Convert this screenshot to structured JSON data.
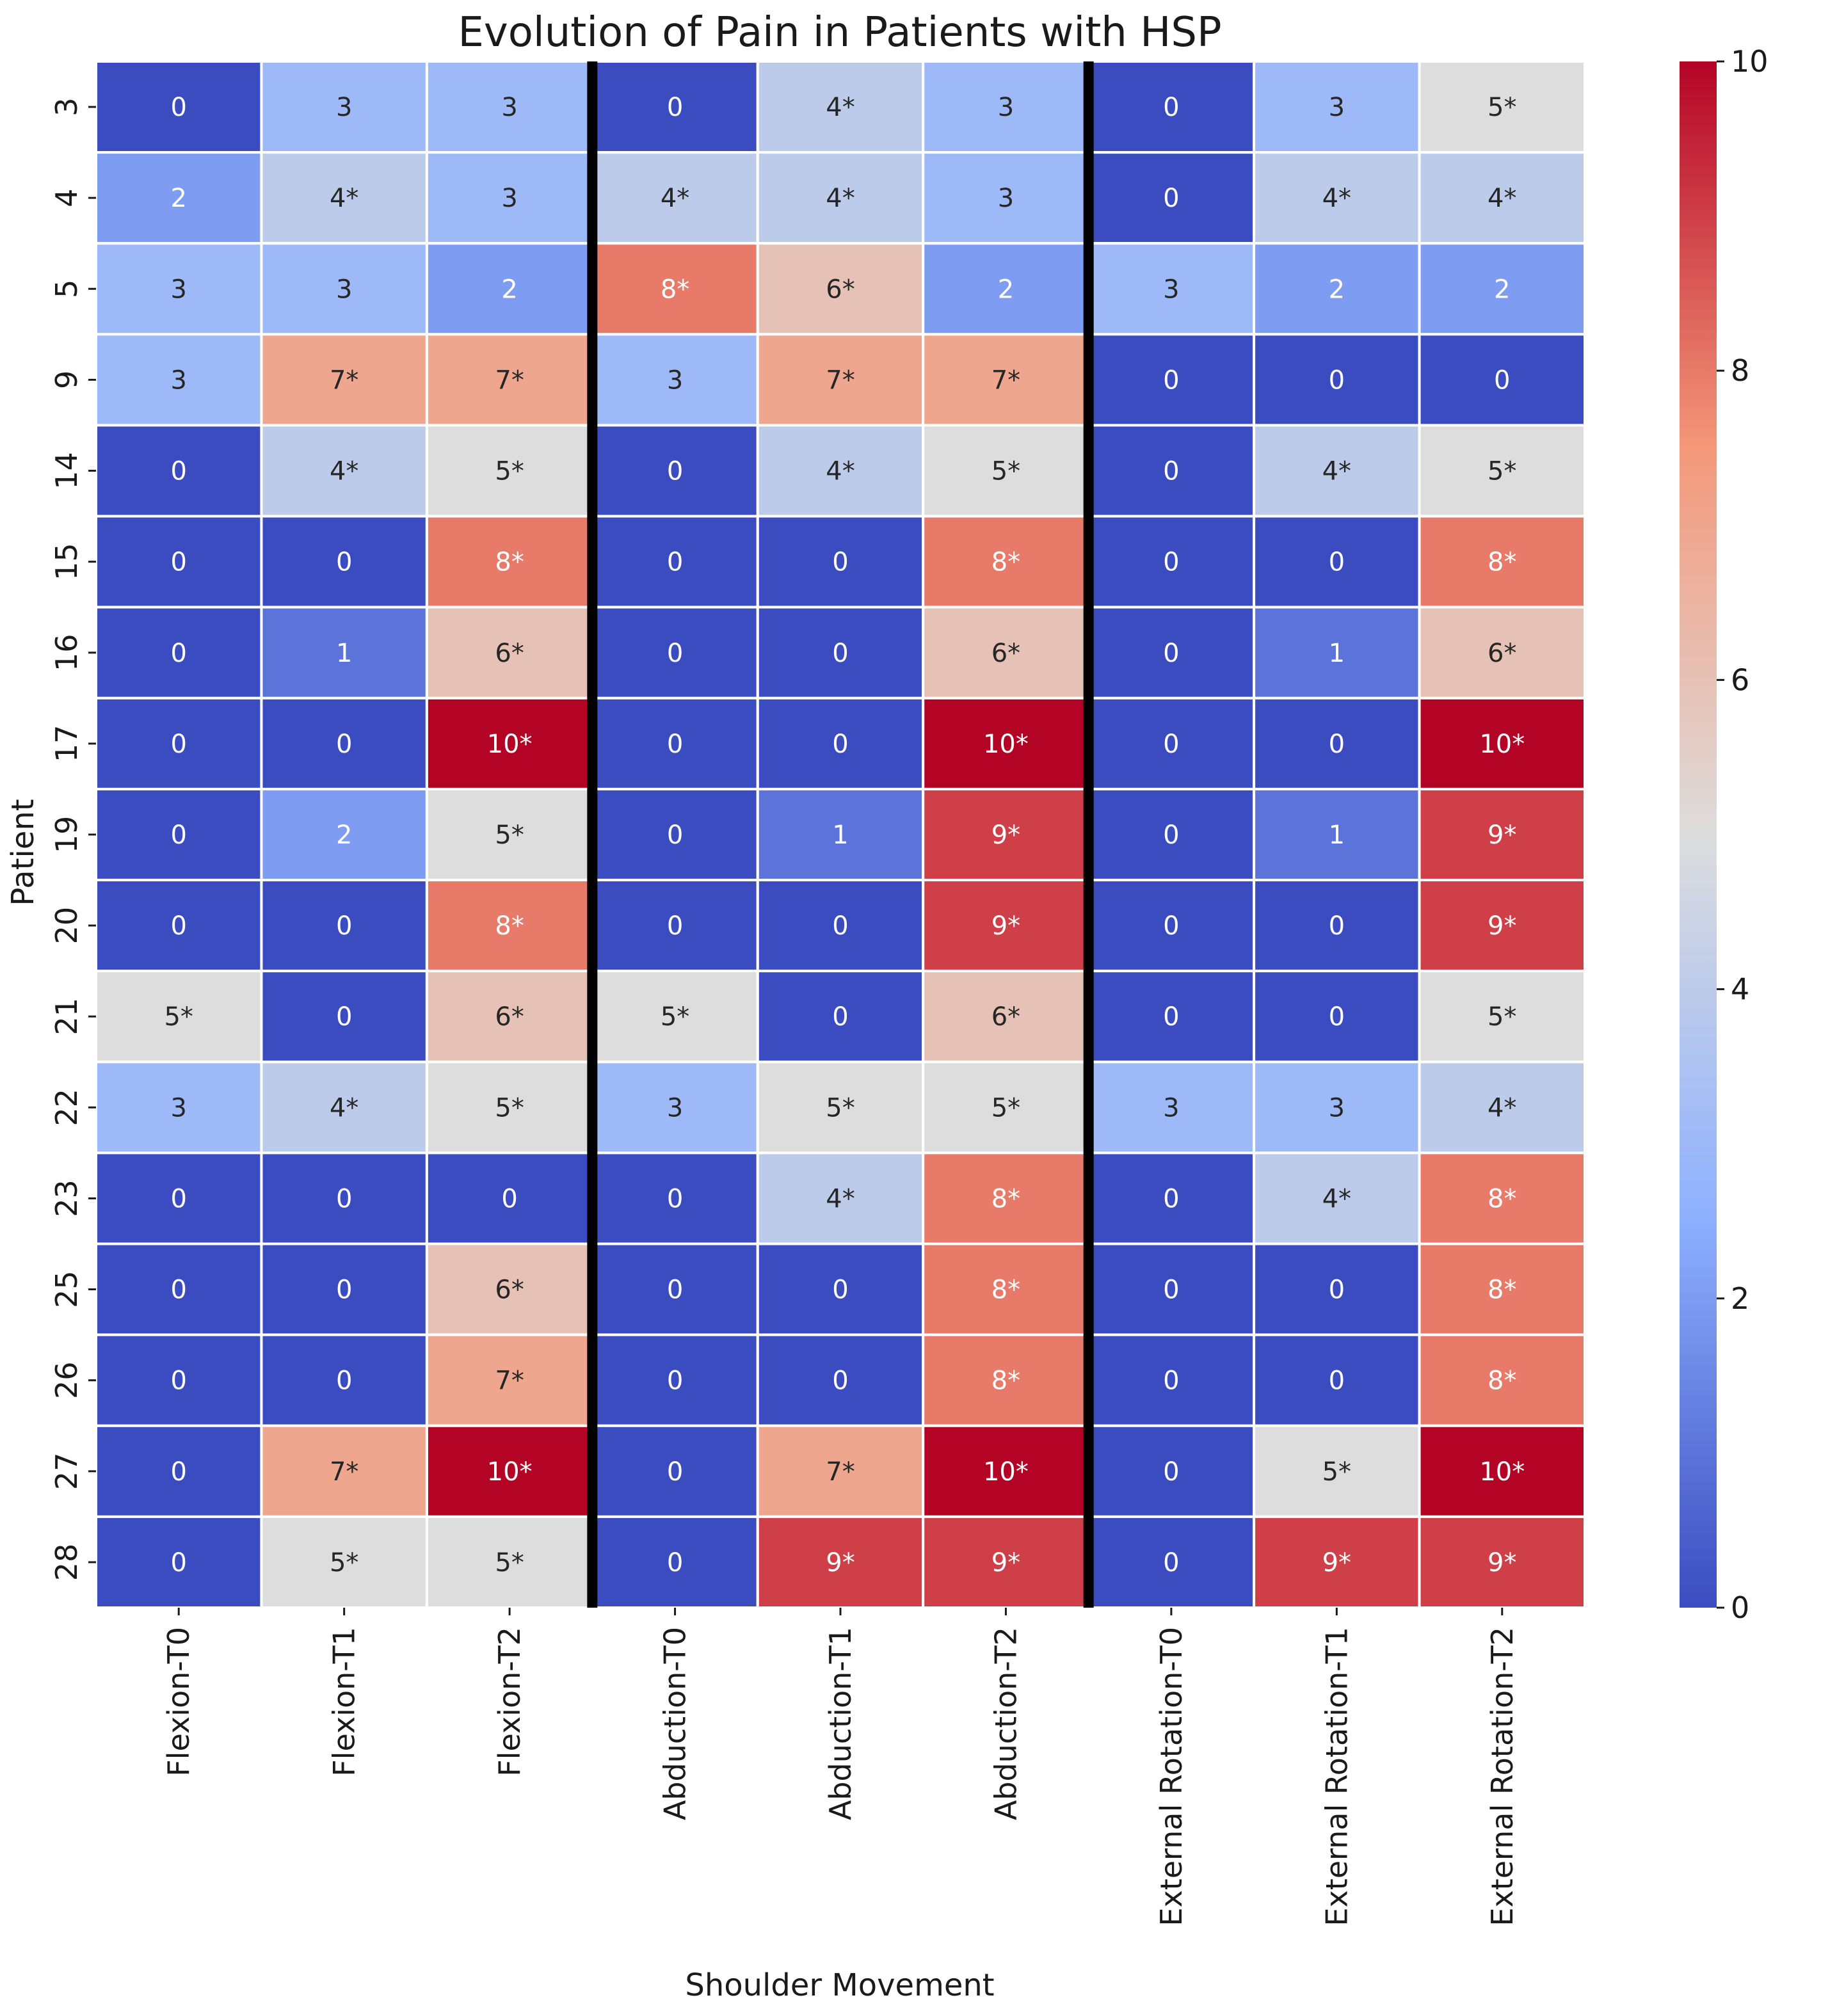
{
  "chart_data": {
    "type": "heatmap",
    "title": "Evolution of Pain in Patients with HSP",
    "xlabel": "Shoulder Movement",
    "ylabel": "Patient",
    "columns": [
      "Flexion-T0",
      "Flexion-T1",
      "Flexion-T2",
      "Abduction-T0",
      "Abduction-T1",
      "Abduction-T2",
      "External Rotation-T0",
      "External Rotation-T1",
      "External Rotation-T2"
    ],
    "rows": [
      "3",
      "4",
      "5",
      "9",
      "14",
      "15",
      "16",
      "17",
      "19",
      "20",
      "21",
      "22",
      "23",
      "25",
      "26",
      "27",
      "28"
    ],
    "values": [
      [
        0,
        3,
        3,
        0,
        4,
        3,
        0,
        3,
        5
      ],
      [
        2,
        4,
        3,
        4,
        4,
        3,
        0,
        4,
        4
      ],
      [
        3,
        3,
        2,
        8,
        6,
        2,
        3,
        2,
        2
      ],
      [
        3,
        7,
        7,
        3,
        7,
        7,
        0,
        0,
        0
      ],
      [
        0,
        4,
        5,
        0,
        4,
        5,
        0,
        4,
        5
      ],
      [
        0,
        0,
        8,
        0,
        0,
        8,
        0,
        0,
        8
      ],
      [
        0,
        1,
        6,
        0,
        0,
        6,
        0,
        1,
        6
      ],
      [
        0,
        0,
        10,
        0,
        0,
        10,
        0,
        0,
        10
      ],
      [
        0,
        2,
        5,
        0,
        1,
        9,
        0,
        1,
        9
      ],
      [
        0,
        0,
        8,
        0,
        0,
        9,
        0,
        0,
        9
      ],
      [
        5,
        0,
        6,
        5,
        0,
        6,
        0,
        0,
        5
      ],
      [
        3,
        4,
        5,
        3,
        5,
        5,
        3,
        3,
        4
      ],
      [
        0,
        0,
        0,
        0,
        4,
        8,
        0,
        4,
        8
      ],
      [
        0,
        0,
        6,
        0,
        0,
        8,
        0,
        0,
        8
      ],
      [
        0,
        0,
        7,
        0,
        0,
        8,
        0,
        0,
        8
      ],
      [
        0,
        7,
        10,
        0,
        7,
        10,
        0,
        5,
        10
      ],
      [
        0,
        5,
        5,
        0,
        9,
        9,
        0,
        9,
        9
      ]
    ],
    "annotations": [
      [
        "0",
        "3",
        "3",
        "0",
        "4*",
        "3",
        "0",
        "3",
        "5*"
      ],
      [
        "2",
        "4*",
        "3",
        "4*",
        "4*",
        "3",
        "0",
        "4*",
        "4*"
      ],
      [
        "3",
        "3",
        "2",
        "8*",
        "6*",
        "2",
        "3",
        "2",
        "2"
      ],
      [
        "3",
        "7*",
        "7*",
        "3",
        "7*",
        "7*",
        "0",
        "0",
        "0"
      ],
      [
        "0",
        "4*",
        "5*",
        "0",
        "4*",
        "5*",
        "0",
        "4*",
        "5*"
      ],
      [
        "0",
        "0",
        "8*",
        "0",
        "0",
        "8*",
        "0",
        "0",
        "8*"
      ],
      [
        "0",
        "1",
        "6*",
        "0",
        "0",
        "6*",
        "0",
        "1",
        "6*"
      ],
      [
        "0",
        "0",
        "10*",
        "0",
        "0",
        "10*",
        "0",
        "0",
        "10*"
      ],
      [
        "0",
        "2",
        "5*",
        "0",
        "1",
        "9*",
        "0",
        "1",
        "9*"
      ],
      [
        "0",
        "0",
        "8*",
        "0",
        "0",
        "9*",
        "0",
        "0",
        "9*"
      ],
      [
        "5*",
        "0",
        "6*",
        "5*",
        "0",
        "6*",
        "0",
        "0",
        "5*"
      ],
      [
        "3",
        "4*",
        "5*",
        "3",
        "5*",
        "5*",
        "3",
        "3",
        "4*"
      ],
      [
        "0",
        "0",
        "0",
        "0",
        "4*",
        "8*",
        "0",
        "4*",
        "8*"
      ],
      [
        "0",
        "0",
        "6*",
        "0",
        "0",
        "8*",
        "0",
        "0",
        "8*"
      ],
      [
        "0",
        "0",
        "7*",
        "0",
        "0",
        "8*",
        "0",
        "0",
        "8*"
      ],
      [
        "0",
        "7*",
        "10*",
        "0",
        "7*",
        "10*",
        "0",
        "5*",
        "10*"
      ],
      [
        "0",
        "5*",
        "5*",
        "0",
        "9*",
        "9*",
        "0",
        "9*",
        "9*"
      ]
    ],
    "vmin": 0,
    "vmax": 10,
    "colormap": "coolwarm",
    "colorbar_ticks": [
      0,
      2,
      4,
      6,
      8,
      10
    ],
    "group_separators_after_columns": [
      3,
      6
    ]
  }
}
